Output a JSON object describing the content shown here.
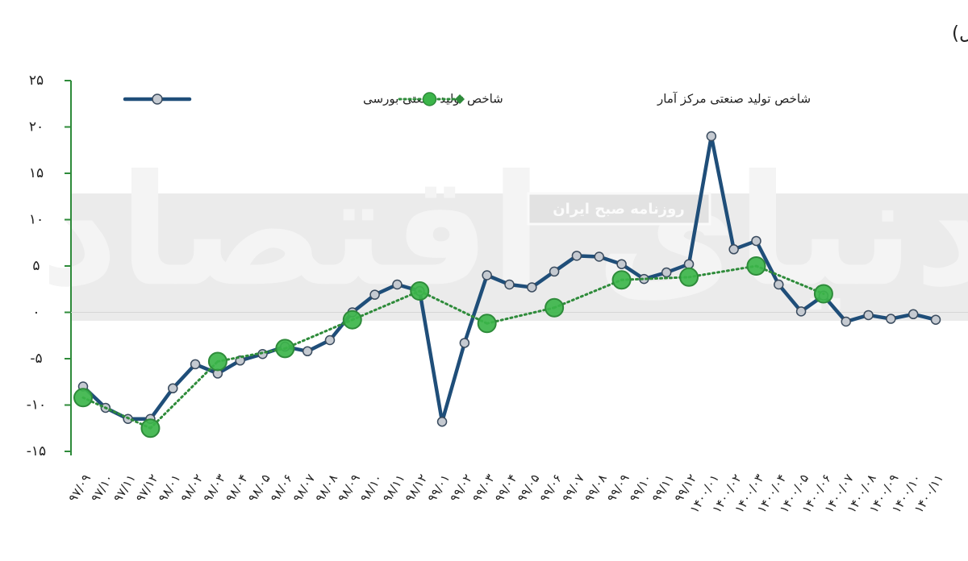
{
  "chart_data": {
    "type": "line",
    "title": "رشد شاخص تولید صنعتی بورسی  و شاخص تولید صنعتی مرکز آمار ایران (نسبت به مدت مشابه سال قبل)",
    "watermark": {
      "logo": "دنیای اقتصاد",
      "band_text": "روزنامه صبح ایران"
    },
    "categories": [
      "۹۷/۰۹",
      "۹۷/۱۰",
      "۹۷/۱۱",
      "۹۷/۱۲",
      "۹۸/۰۱",
      "۹۸/۰۲",
      "۹۸/۰۳",
      "۹۸/۰۴",
      "۹۸/۰۵",
      "۹۸/۰۶",
      "۹۸/۰۷",
      "۹۸/۰۸",
      "۹۸/۰۹",
      "۹۸/۱۰",
      "۹۸/۱۱",
      "۹۸/۱۲",
      "۹۹/۰۱",
      "۹۹/۰۲",
      "۹۹/۰۳",
      "۹۹/۰۴",
      "۹۹/۰۵",
      "۹۹/۰۶",
      "۹۹/۰۷",
      "۹۹/۰۸",
      "۹۹/۰۹",
      "۹۹/۱۰",
      "۹۹/۱۱",
      "۹۹/۱۲",
      "۱۴۰۰/۰۱",
      "۱۴۰۰/۰۲",
      "۱۴۰۰/۰۳",
      "۱۴۰۰/۰۴",
      "۱۴۰۰/۰۵",
      "۱۴۰۰/۰۶",
      "۱۴۰۰/۰۷",
      "۱۴۰۰/۰۸",
      "۱۴۰۰/۰۹",
      "۱۴۰۰/۱۰",
      "۱۴۰۰/۱۱"
    ],
    "series": [
      {
        "name": "شاخص تولید صنعتی بورسی",
        "color": "#1f4e79",
        "marker_color": "#c5cad1",
        "style": "solid",
        "values": [
          -8,
          -10.3,
          -11.5,
          -11.5,
          -8.2,
          -5.6,
          -6.6,
          -5.2,
          -4.5,
          -3.7,
          -4.2,
          -3,
          0,
          1.9,
          3,
          2.3,
          -11.8,
          -3.3,
          4,
          3,
          2.7,
          4.4,
          6.1,
          6,
          5.2,
          3.6,
          4.3,
          5.2,
          19,
          6.8,
          7.7,
          3,
          0.1,
          1.8,
          -1,
          -0.3,
          -0.7,
          -0.2,
          -0.8
        ]
      },
      {
        "name": "شاخص تولید صنعتی مرکز آمار",
        "color": "#2e8b3a",
        "marker_color": "#3cb54a",
        "style": "dotted",
        "values": [
          -9.2,
          null,
          null,
          -12.5,
          null,
          null,
          -5.3,
          null,
          null,
          -3.9,
          null,
          null,
          -0.8,
          null,
          null,
          2.3,
          null,
          null,
          -1.2,
          null,
          null,
          0.5,
          null,
          null,
          3.5,
          null,
          null,
          3.8,
          null,
          null,
          5,
          null,
          null,
          2,
          null,
          null,
          null,
          null,
          null
        ]
      }
    ],
    "ylim": [
      -15,
      25
    ],
    "yticks": [
      {
        "value": 25,
        "label": "۲۵"
      },
      {
        "value": 20,
        "label": "۲۰"
      },
      {
        "value": 15,
        "label": "۱۵"
      },
      {
        "value": 10,
        "label": "۱۰"
      },
      {
        "value": 5,
        "label": "۵"
      },
      {
        "value": 0,
        "label": "۰"
      },
      {
        "value": -5,
        "label": "-۵"
      },
      {
        "value": -10,
        "label": "-۱۰"
      },
      {
        "value": -15,
        "label": "-۱۵"
      }
    ],
    "grid": false,
    "legend": "top"
  }
}
